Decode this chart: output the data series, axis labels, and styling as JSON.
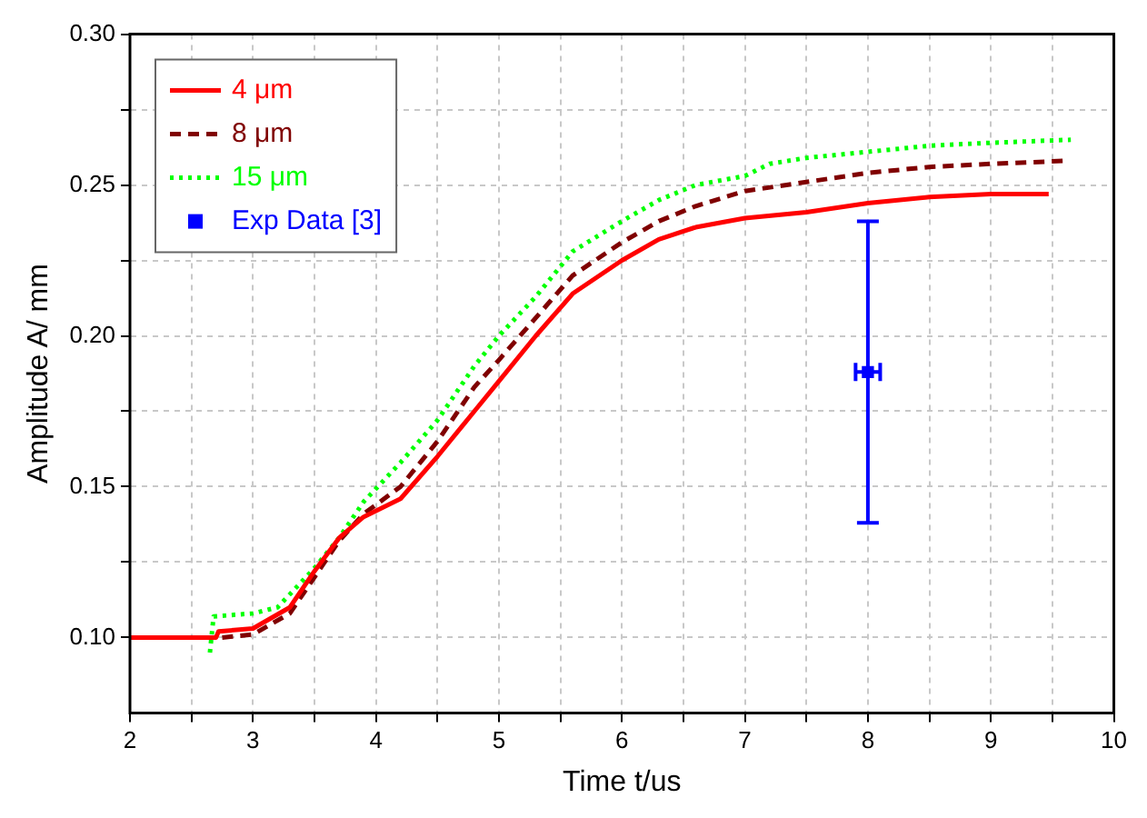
{
  "chart_data": {
    "type": "line",
    "xlabel": "Time t/us",
    "ylabel": "Amplitude A/ mm",
    "xlim": [
      2,
      10
    ],
    "ylim": [
      0.075,
      0.3
    ],
    "xticks": [
      2,
      {
        "value": 2.5,
        "label": null
      },
      3,
      {
        "value": 3.5,
        "label": null
      },
      4,
      {
        "value": 4.5,
        "label": null
      },
      5,
      {
        "value": 5.5,
        "label": null
      },
      6,
      {
        "value": 6.5,
        "label": null
      },
      7,
      {
        "value": 7.5,
        "label": null
      },
      8,
      {
        "value": 8.5,
        "label": null
      },
      9,
      {
        "value": 9.5,
        "label": null
      },
      10
    ],
    "yticks": [
      {
        "value": 0.1,
        "label": "0.10"
      },
      {
        "value": 0.125,
        "label": null
      },
      0.15,
      {
        "value": 0.175,
        "label": null
      },
      {
        "value": 0.2,
        "label": "0.20"
      },
      {
        "value": 0.225,
        "label": null
      },
      0.25,
      {
        "value": 0.275,
        "label": null
      },
      {
        "value": 0.3,
        "label": "0.30"
      }
    ],
    "grid": true,
    "legend": "top left",
    "marker": "none",
    "series": [
      {
        "name": "4 μm",
        "color": "#ff0000",
        "line_style": "solid",
        "x": [
          2,
          2.7,
          2.72,
          3.0,
          3.3,
          3.5,
          3.7,
          3.9,
          4.2,
          4.5,
          4.8,
          5.0,
          5.3,
          5.6,
          6.0,
          6.3,
          6.6,
          7.0,
          7.5,
          8.0,
          8.5,
          9.0,
          9.47
        ],
        "values": [
          0.1,
          0.1,
          0.102,
          0.103,
          0.11,
          0.122,
          0.133,
          0.14,
          0.146,
          0.16,
          0.175,
          0.185,
          0.2,
          0.214,
          0.225,
          0.232,
          0.236,
          0.239,
          0.241,
          0.244,
          0.246,
          0.247,
          0.247
        ]
      },
      {
        "name": "8 μm",
        "color": "#800000",
        "line_style": "dashed",
        "x": [
          2.75,
          3.0,
          3.3,
          3.5,
          3.7,
          3.9,
          4.2,
          4.5,
          4.8,
          5.0,
          5.3,
          5.6,
          6.0,
          6.3,
          6.6,
          7.0,
          7.5,
          8.0,
          8.5,
          9.0,
          9.6
        ],
        "values": [
          0.1,
          0.101,
          0.108,
          0.12,
          0.132,
          0.141,
          0.15,
          0.165,
          0.183,
          0.192,
          0.206,
          0.22,
          0.231,
          0.238,
          0.243,
          0.248,
          0.251,
          0.254,
          0.256,
          0.257,
          0.258
        ]
      },
      {
        "name": "15 μm",
        "color": "#00ff00",
        "line_style": "dotted",
        "x": [
          2.65,
          2.68,
          3.0,
          3.2,
          3.5,
          3.7,
          3.9,
          4.2,
          4.5,
          4.8,
          5.0,
          5.3,
          5.6,
          6.0,
          6.3,
          6.6,
          7.0,
          7.2,
          7.5,
          8.0,
          8.5,
          9.0,
          9.65
        ],
        "values": [
          0.095,
          0.107,
          0.108,
          0.11,
          0.123,
          0.133,
          0.145,
          0.158,
          0.172,
          0.19,
          0.2,
          0.213,
          0.228,
          0.238,
          0.245,
          0.25,
          0.253,
          0.257,
          0.259,
          0.261,
          0.263,
          0.264,
          0.265
        ]
      },
      {
        "name": "Exp Data [3]",
        "color": "#0000ff",
        "type": "scatter",
        "marker": "square",
        "x": [
          8
        ],
        "values": [
          0.188
        ],
        "errors": [
          0.05
        ],
        "xerrors": [
          0.1
        ]
      }
    ]
  }
}
